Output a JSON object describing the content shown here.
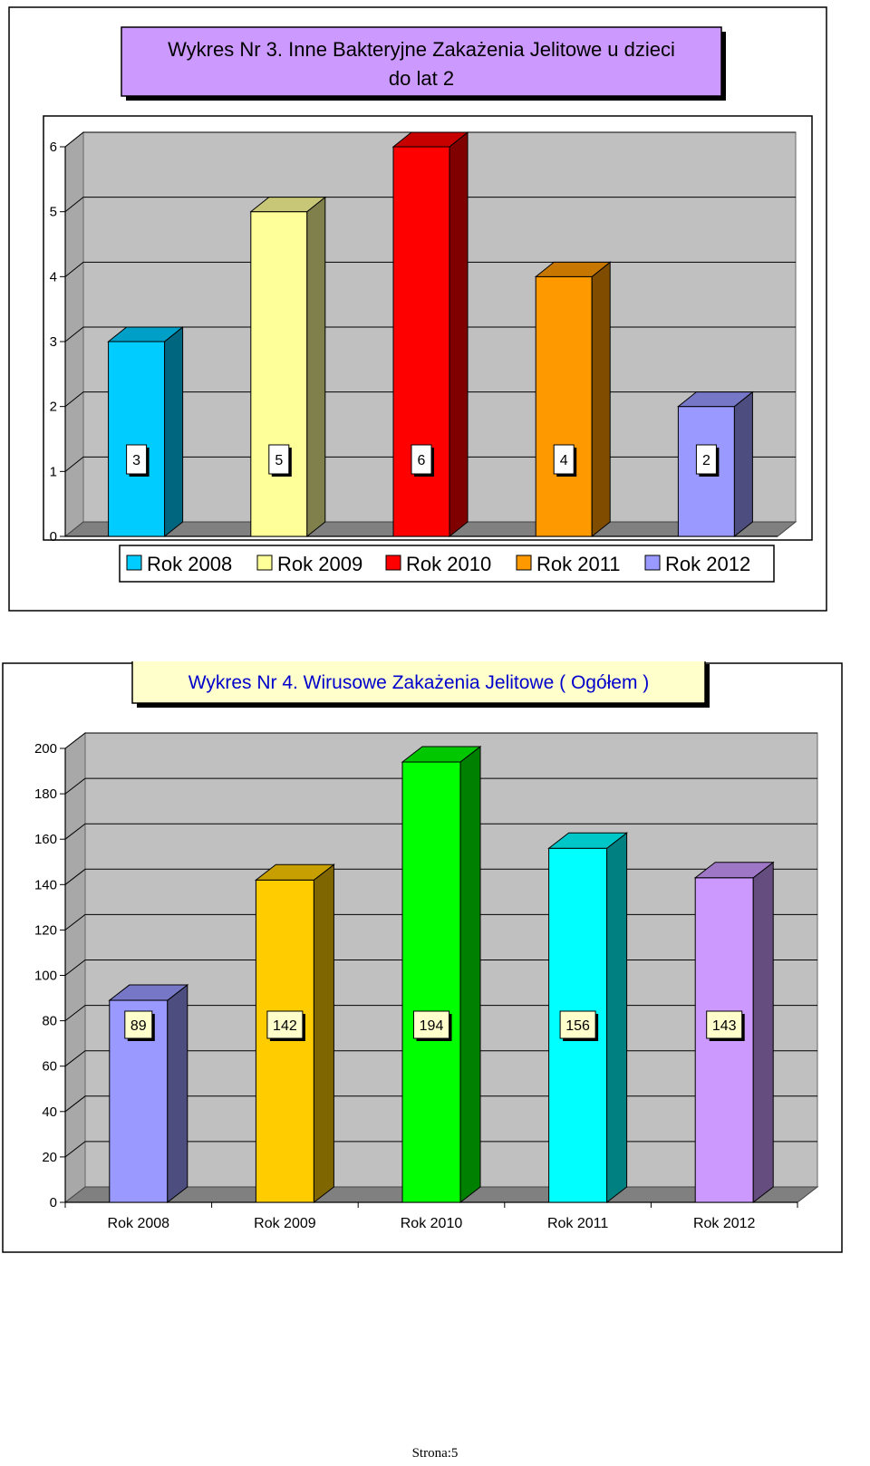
{
  "chart_data": [
    {
      "type": "bar",
      "title": "Wykres Nr 3. Inne Bakteryjne Zakażenia Jelitowe u dzieci do lat 2",
      "title_lines": [
        "Wykres Nr 3. Inne Bakteryjne Zakażenia Jelitowe u dzieci",
        "do lat 2"
      ],
      "categories": [
        "Rok 2008",
        "Rok 2009",
        "Rok 2010",
        "Rok 2011",
        "Rok 2012"
      ],
      "values": [
        3,
        5,
        6,
        4,
        2
      ],
      "value_labels": [
        "3",
        "5",
        "6",
        "4",
        "2"
      ],
      "colors": [
        "#00ccff",
        "#ffff99",
        "#ff0000",
        "#ff9900",
        "#9999ff"
      ],
      "ylim": [
        0,
        6
      ],
      "yticks": [
        0,
        1,
        2,
        3,
        4,
        5,
        6
      ],
      "ytick_labels": [
        "0",
        "1",
        "2",
        "3",
        "4",
        "5",
        "6"
      ],
      "legend": [
        "Rok 2008",
        "Rok 2009",
        "Rok 2010",
        "Rok 2011",
        "Rok 2012"
      ],
      "legend_position": "bottom",
      "grid": true,
      "title_bg": "#cc99ff",
      "wall_color": "#c0c0c0",
      "floor_color": "#808080"
    },
    {
      "type": "bar",
      "title": "Wykres Nr 4. Wirusowe  Zakażenia  Jelitowe  ( Ogółem )",
      "title_lines": [
        "Wykres Nr 4. Wirusowe  Zakażenia  Jelitowe  ( Ogółem )"
      ],
      "categories": [
        "Rok 2008",
        "Rok 2009",
        "Rok 2010",
        "Rok 2011",
        "Rok 2012"
      ],
      "values": [
        89,
        142,
        194,
        156,
        143
      ],
      "value_labels": [
        "89",
        "142",
        "194",
        "156",
        "143"
      ],
      "colors": [
        "#9999ff",
        "#ffcc00",
        "#00ff00",
        "#00ffff",
        "#cc99ff"
      ],
      "ylim": [
        0,
        200
      ],
      "yticks": [
        0,
        20,
        40,
        60,
        80,
        100,
        120,
        140,
        160,
        180,
        200
      ],
      "ytick_labels": [
        "0",
        "20",
        "40",
        "60",
        "80",
        "100",
        "120",
        "140",
        "160",
        "180",
        "200"
      ],
      "grid": true,
      "title_bg": "#ffffcc",
      "title_color": "#0000cc",
      "wall_color": "#c0c0c0",
      "floor_color": "#808080"
    }
  ],
  "footer": {
    "page_label": "Strona:5"
  }
}
